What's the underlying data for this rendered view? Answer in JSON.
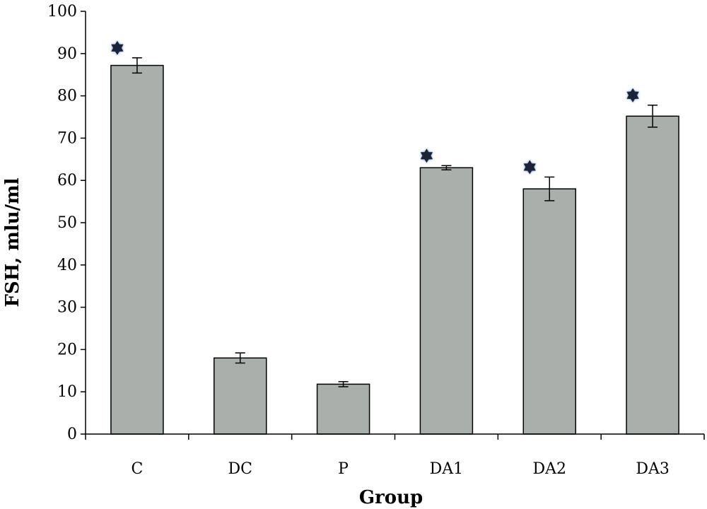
{
  "chart_data": {
    "type": "bar",
    "title": "",
    "xlabel": "Group",
    "ylabel": "FSH, mlu/ml",
    "ylim": [
      0,
      100
    ],
    "yticks": [
      0,
      10,
      20,
      30,
      40,
      50,
      60,
      70,
      80,
      90,
      100
    ],
    "categories": [
      "C",
      "DC",
      "P",
      "DA1",
      "DA2",
      "DA3"
    ],
    "values": [
      87.2,
      18.0,
      11.8,
      63.0,
      58.0,
      75.2
    ],
    "errors": [
      1.8,
      1.2,
      0.6,
      0.5,
      2.8,
      2.6
    ],
    "significant": [
      true,
      false,
      false,
      true,
      true,
      true
    ],
    "bar_color": "#a9b0ab",
    "marker_color": "#1a2338",
    "grid": false,
    "legend": "none"
  }
}
